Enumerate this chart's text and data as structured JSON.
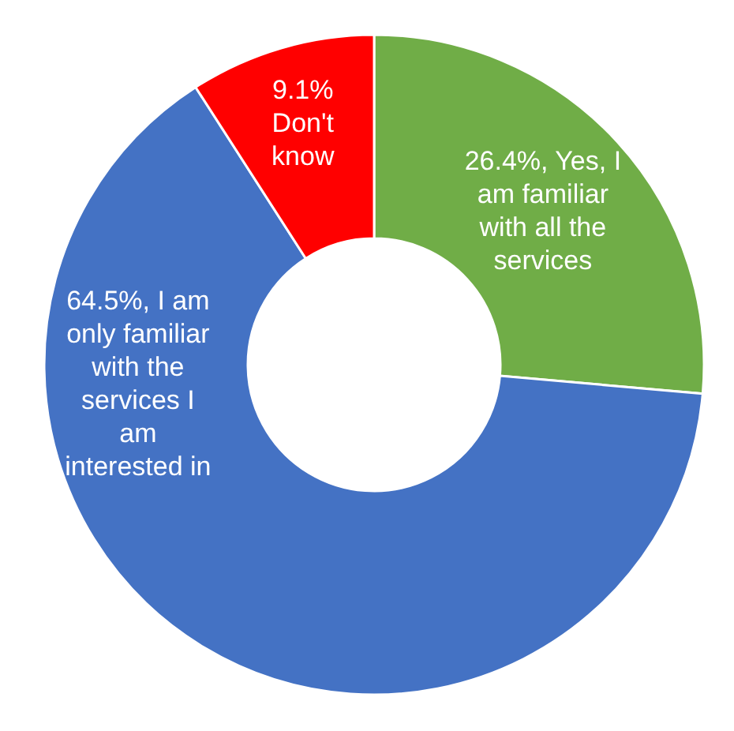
{
  "chart_data": {
    "type": "donut",
    "categories": [
      "Yes, I am familiar with all the services",
      "I am only familiar with the services I am interested in",
      "Don't know"
    ],
    "values": [
      26.4,
      64.5,
      9.1
    ],
    "colors": [
      "#70ad47",
      "#4472c4",
      "#ff0000"
    ],
    "value_labels": [
      "26.4%,",
      "64.5%,",
      "9.1%"
    ]
  }
}
